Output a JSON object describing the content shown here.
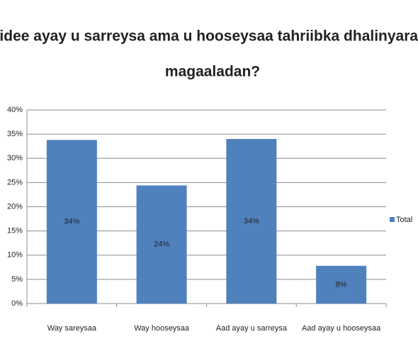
{
  "chart_data": {
    "type": "bar",
    "title": "Sidee ayay u sarreysa ama u hooseysaa tahriibka dhalinyarada magaaladan?",
    "categories": [
      "Way sareysaa",
      "Way hooseysaa",
      "Aad ayay u sarreysa",
      "Aad ayay u hooseysaa"
    ],
    "series": [
      {
        "name": "Total",
        "color": "#4f81bd",
        "values": [
          33.8,
          24.4,
          34,
          7.8
        ],
        "value_labels": [
          "34%",
          "24%",
          "34%",
          "8%"
        ]
      }
    ],
    "ylim": [
      0,
      40
    ],
    "yticks": [
      {
        "value": 0,
        "label": "0%"
      },
      {
        "value": 5,
        "label": "5%"
      },
      {
        "value": 10,
        "label": "10%"
      },
      {
        "value": 15,
        "label": "15%"
      },
      {
        "value": 20,
        "label": "20%"
      },
      {
        "value": 25,
        "label": "25%"
      },
      {
        "value": 30,
        "label": "30%"
      },
      {
        "value": 35,
        "label": "35%"
      },
      {
        "value": 40,
        "label": "40%"
      }
    ],
    "grid": true,
    "legend": "right"
  }
}
